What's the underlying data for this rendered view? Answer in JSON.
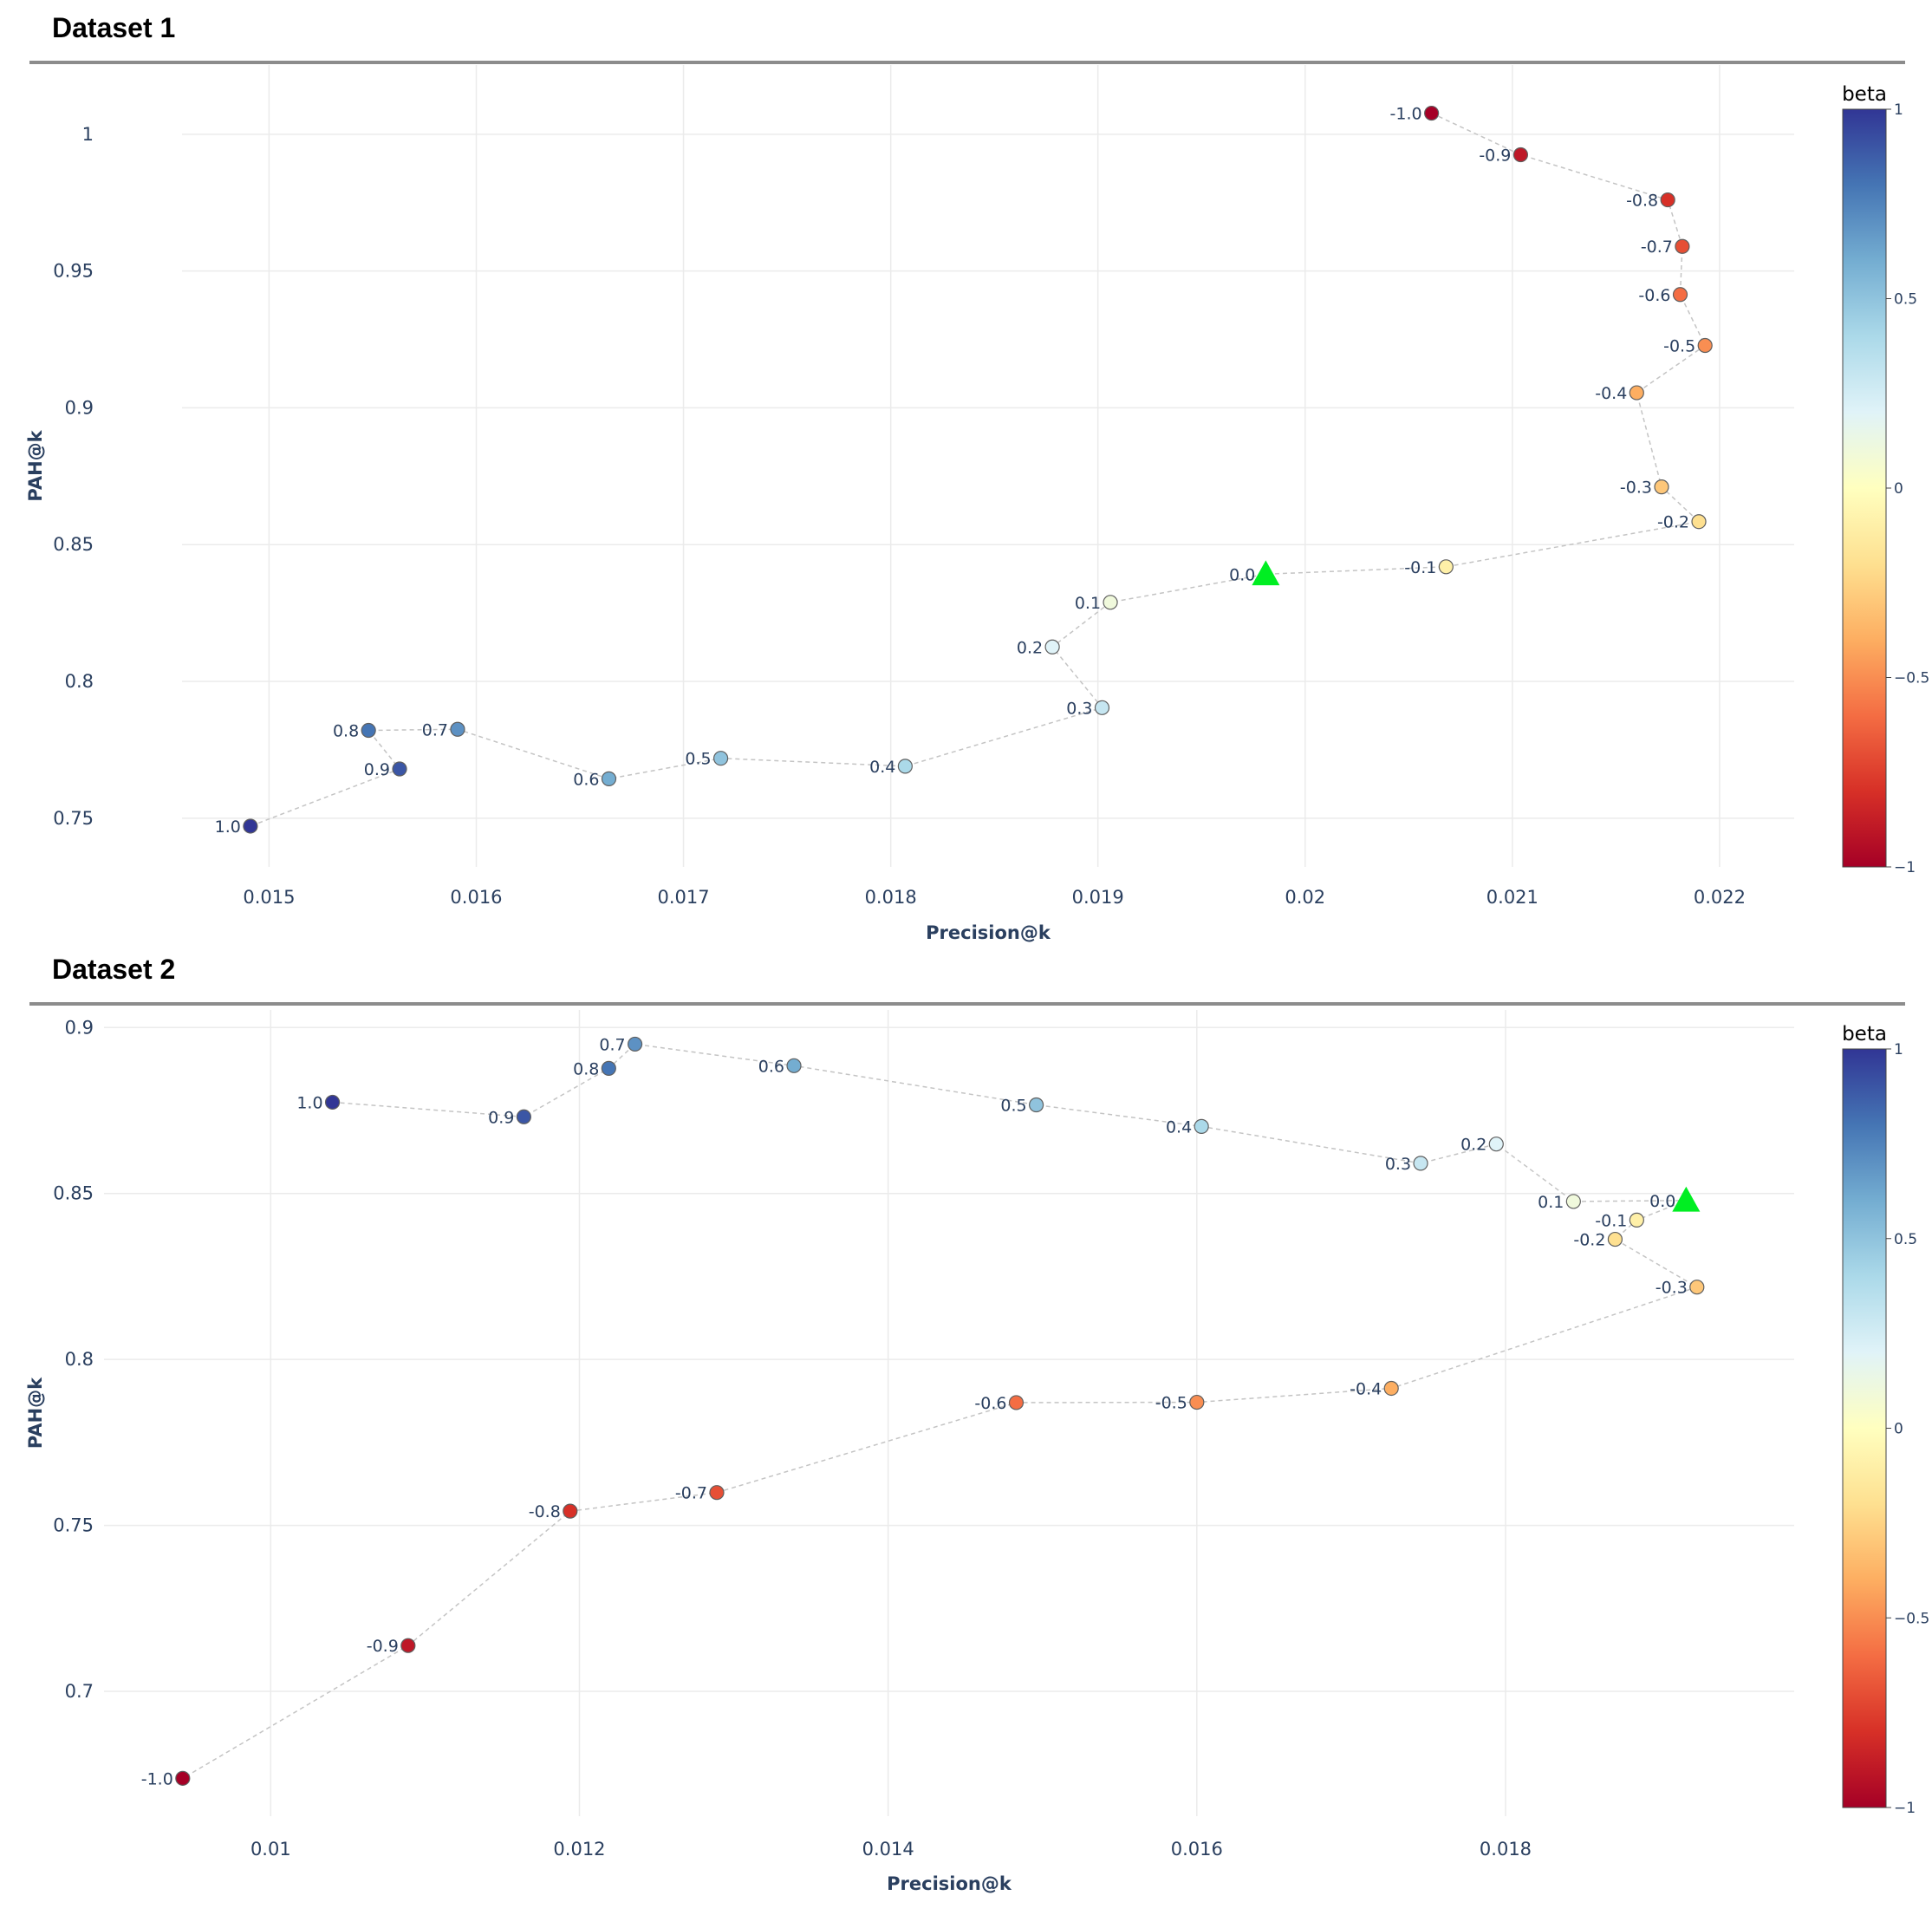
{
  "sections": [
    {
      "title": "Dataset 1"
    },
    {
      "title": "Dataset 2"
    }
  ],
  "chart_data": [
    {
      "type": "scatter",
      "title": "Dataset 1",
      "xlabel": "Precision@k",
      "ylabel": "PAH@k",
      "xlim": [
        0.01458,
        0.02236
      ],
      "ylim": [
        0.7322,
        1.0253
      ],
      "xticks": [
        0.015,
        0.016,
        0.017,
        0.018,
        0.019,
        0.02,
        0.021,
        0.022
      ],
      "xtick_labels": [
        "0.015",
        "0.016",
        "0.017",
        "0.018",
        "0.019",
        "0.02",
        "0.021",
        "0.022"
      ],
      "yticks": [
        0.75,
        0.8,
        0.85,
        0.9,
        0.95,
        1.0
      ],
      "ytick_labels": [
        "0.75",
        "0.8",
        "0.85",
        "0.9",
        "0.95",
        "1"
      ],
      "colorbar": {
        "title": "beta",
        "min": -1,
        "max": 1,
        "ticks": [
          1,
          0.5,
          0,
          -0.5,
          -1
        ],
        "tick_labels": [
          "1",
          "0.5",
          "0",
          "−0.5",
          "−1"
        ],
        "colorscale": [
          "#a50026",
          "#d73027",
          "#f46d43",
          "#fdae61",
          "#fee090",
          "#ffffbf",
          "#e0f3f8",
          "#abd9e9",
          "#74add1",
          "#4575b4",
          "#313695"
        ]
      },
      "baseline_color": "#00ee22",
      "points": [
        {
          "label": "-1.0",
          "beta": -1.0,
          "x": 0.02061,
          "y": 1.0077
        },
        {
          "label": "-0.9",
          "beta": -0.9,
          "x": 0.02104,
          "y": 0.9925
        },
        {
          "label": "-0.8",
          "beta": -0.8,
          "x": 0.02175,
          "y": 0.976
        },
        {
          "label": "-0.7",
          "beta": -0.7,
          "x": 0.02182,
          "y": 0.959
        },
        {
          "label": "-0.6",
          "beta": -0.6,
          "x": 0.02181,
          "y": 0.9414
        },
        {
          "label": "-0.5",
          "beta": -0.5,
          "x": 0.02193,
          "y": 0.9228
        },
        {
          "label": "-0.4",
          "beta": -0.4,
          "x": 0.0216,
          "y": 0.9055
        },
        {
          "label": "-0.3",
          "beta": -0.3,
          "x": 0.02172,
          "y": 0.8711
        },
        {
          "label": "-0.2",
          "beta": -0.2,
          "x": 0.0219,
          "y": 0.8584
        },
        {
          "label": "-0.1",
          "beta": -0.1,
          "x": 0.02068,
          "y": 0.8419
        },
        {
          "label": "0.0",
          "beta": 0.0,
          "x": 0.01981,
          "y": 0.8392,
          "baseline": true
        },
        {
          "label": "0.1",
          "beta": 0.1,
          "x": 0.01906,
          "y": 0.8289
        },
        {
          "label": "0.2",
          "beta": 0.2,
          "x": 0.01878,
          "y": 0.8126
        },
        {
          "label": "0.3",
          "beta": 0.3,
          "x": 0.01902,
          "y": 0.7904
        },
        {
          "label": "0.4",
          "beta": 0.4,
          "x": 0.01807,
          "y": 0.769
        },
        {
          "label": "0.5",
          "beta": 0.5,
          "x": 0.01718,
          "y": 0.7719
        },
        {
          "label": "0.6",
          "beta": 0.6,
          "x": 0.01664,
          "y": 0.7644
        },
        {
          "label": "0.7",
          "beta": 0.7,
          "x": 0.01591,
          "y": 0.7825
        },
        {
          "label": "0.8",
          "beta": 0.8,
          "x": 0.01548,
          "y": 0.7821
        },
        {
          "label": "0.9",
          "beta": 0.9,
          "x": 0.01563,
          "y": 0.768
        },
        {
          "label": "1.0",
          "beta": 1.0,
          "x": 0.01491,
          "y": 0.7471
        }
      ]
    },
    {
      "type": "scatter",
      "title": "Dataset 2",
      "xlabel": "Precision@k",
      "ylabel": "PAH@k",
      "xlim": [
        0.00892,
        0.01987
      ],
      "ylim": [
        0.6624,
        0.9053
      ],
      "xticks": [
        0.01,
        0.012,
        0.014,
        0.016,
        0.018
      ],
      "xtick_labels": [
        "0.01",
        "0.012",
        "0.014",
        "0.016",
        "0.018"
      ],
      "yticks": [
        0.7,
        0.75,
        0.8,
        0.85,
        0.9
      ],
      "ytick_labels": [
        "0.7",
        "0.75",
        "0.8",
        "0.85",
        "0.9"
      ],
      "colorbar": {
        "title": "beta",
        "min": -1,
        "max": 1,
        "ticks": [
          1,
          0.5,
          0,
          -0.5,
          -1
        ],
        "tick_labels": [
          "1",
          "0.5",
          "0",
          "−0.5",
          "−1"
        ],
        "colorscale": [
          "#a50026",
          "#d73027",
          "#f46d43",
          "#fdae61",
          "#fee090",
          "#ffffbf",
          "#e0f3f8",
          "#abd9e9",
          "#74add1",
          "#4575b4",
          "#313695"
        ]
      },
      "baseline_color": "#00ee22",
      "points": [
        {
          "label": "1.0",
          "beta": 1.0,
          "x": 0.0104,
          "y": 0.8775
        },
        {
          "label": "0.9",
          "beta": 0.9,
          "x": 0.01164,
          "y": 0.8731
        },
        {
          "label": "0.8",
          "beta": 0.8,
          "x": 0.01219,
          "y": 0.8877
        },
        {
          "label": "0.7",
          "beta": 0.7,
          "x": 0.01236,
          "y": 0.895
        },
        {
          "label": "0.6",
          "beta": 0.6,
          "x": 0.01339,
          "y": 0.8885
        },
        {
          "label": "0.5",
          "beta": 0.5,
          "x": 0.01496,
          "y": 0.8767
        },
        {
          "label": "0.4",
          "beta": 0.4,
          "x": 0.01603,
          "y": 0.8702
        },
        {
          "label": "0.3",
          "beta": 0.3,
          "x": 0.01745,
          "y": 0.8591
        },
        {
          "label": "0.2",
          "beta": 0.2,
          "x": 0.01794,
          "y": 0.8649
        },
        {
          "label": "0.1",
          "beta": 0.1,
          "x": 0.01844,
          "y": 0.8476
        },
        {
          "label": "0.0",
          "beta": 0.0,
          "x": 0.01917,
          "y": 0.8479,
          "baseline": true
        },
        {
          "label": "-0.1",
          "beta": -0.1,
          "x": 0.01885,
          "y": 0.842
        },
        {
          "label": "-0.2",
          "beta": -0.2,
          "x": 0.01871,
          "y": 0.8362
        },
        {
          "label": "-0.3",
          "beta": -0.3,
          "x": 0.01924,
          "y": 0.8218
        },
        {
          "label": "-0.4",
          "beta": -0.4,
          "x": 0.01726,
          "y": 0.7913
        },
        {
          "label": "-0.5",
          "beta": -0.5,
          "x": 0.016,
          "y": 0.7871
        },
        {
          "label": "-0.6",
          "beta": -0.6,
          "x": 0.01483,
          "y": 0.787
        },
        {
          "label": "-0.7",
          "beta": -0.7,
          "x": 0.01289,
          "y": 0.7599
        },
        {
          "label": "-0.8",
          "beta": -0.8,
          "x": 0.01194,
          "y": 0.7543
        },
        {
          "label": "-0.9",
          "beta": -0.9,
          "x": 0.01089,
          "y": 0.7138
        },
        {
          "label": "-1.0",
          "beta": -1.0,
          "x": 0.00943,
          "y": 0.6738
        }
      ]
    }
  ]
}
